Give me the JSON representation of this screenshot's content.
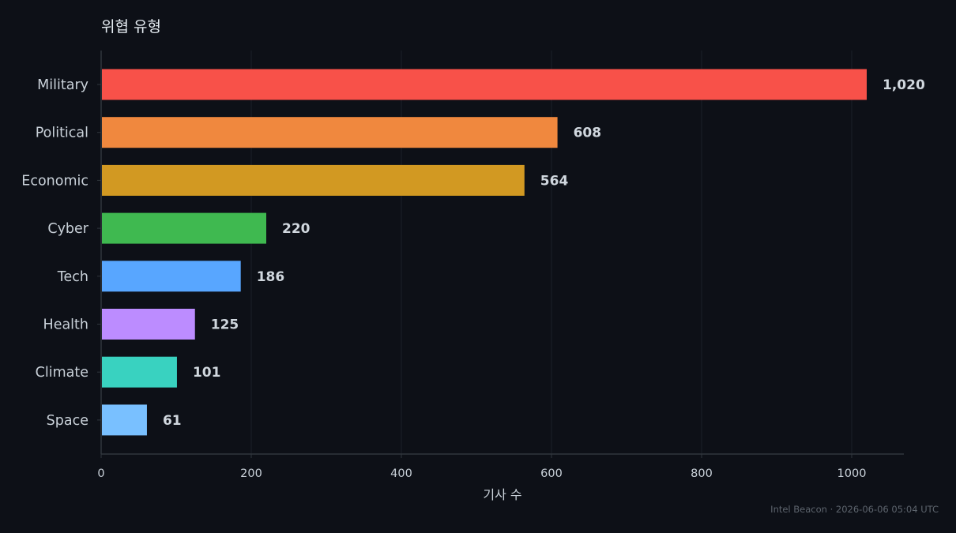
{
  "chart_data": {
    "type": "bar",
    "orientation": "horizontal",
    "title": "위협 유형",
    "xlabel": "기사 수",
    "ylabel": "",
    "categories": [
      "Military",
      "Political",
      "Economic",
      "Cyber",
      "Tech",
      "Health",
      "Climate",
      "Space"
    ],
    "values": [
      1020,
      608,
      564,
      220,
      186,
      125,
      101,
      61
    ],
    "value_labels": [
      "1,020",
      "608",
      "564",
      "220",
      "186",
      "125",
      "101",
      "61"
    ],
    "colors": [
      "#f85149",
      "#f0883e",
      "#d29922",
      "#3fb950",
      "#58a6ff",
      "#bc8cff",
      "#39d2c0",
      "#79c0ff"
    ],
    "xlim": [
      0,
      1070
    ],
    "xticks": [
      0,
      200,
      400,
      600,
      800,
      1000
    ],
    "grid": "vertical",
    "legend": "none"
  },
  "footer": {
    "text": "Intel Beacon · 2026-06-06 05:04 UTC"
  },
  "theme": {
    "background": "#0d1017",
    "grid_color": "#1b2028",
    "axis_color": "#30363d",
    "text_color": "#c9d1d9",
    "value_label_color": "#d0d7de"
  }
}
